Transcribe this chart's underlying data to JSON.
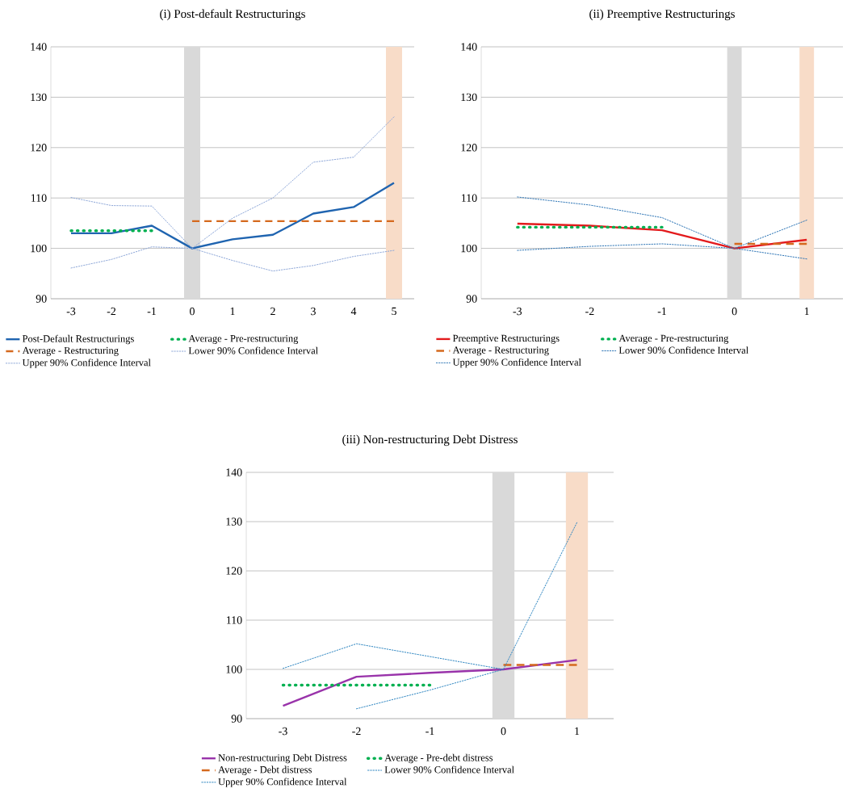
{
  "chart_data": [
    {
      "type": "line",
      "title": "(i) Post-default Restructurings",
      "x": [
        -3,
        -2,
        -1,
        0,
        1,
        2,
        3,
        4,
        5
      ],
      "xlim": [
        -3.5,
        5.5
      ],
      "xticks": [
        -3,
        -2,
        -1,
        0,
        1,
        2,
        3,
        4,
        5
      ],
      "ylim": [
        90,
        140
      ],
      "yticks": [
        90,
        100,
        110,
        120,
        130,
        140
      ],
      "grid": "y",
      "legend": "bottom",
      "marker": "none",
      "bands": [
        {
          "axis": "x",
          "from": -0.2,
          "to": 0.2,
          "color": "#d9d9d9"
        },
        {
          "axis": "x",
          "from": 4.8,
          "to": 5.2,
          "color": "#f8dcc8"
        }
      ],
      "series": [
        {
          "name": "Post-Default Restructurings",
          "color": "#1f64b0",
          "line_style": "solid",
          "values": [
            103.0,
            103.0,
            104.5,
            100,
            101.8,
            102.7,
            106.9,
            108.2,
            113.0
          ]
        },
        {
          "name": "Average - Pre-restructuring",
          "color": "#00b050",
          "line_style": "dotted",
          "values": [
            103.5,
            103.5,
            103.5,
            null,
            null,
            null,
            null,
            null,
            null
          ]
        },
        {
          "name": "Average - Restructuring",
          "color": "#d5691e",
          "line_style": "dashed",
          "values": [
            null,
            null,
            null,
            105.4,
            105.4,
            105.4,
            105.4,
            105.4,
            105.4
          ]
        },
        {
          "name": "Lower 90% Confidence Interval",
          "color": "#8fa8d8",
          "line_style": "dotted",
          "values": [
            96.1,
            97.8,
            100.3,
            100,
            97.6,
            95.5,
            96.6,
            98.4,
            99.6
          ]
        },
        {
          "name": "Upper 90% Confidence Interval",
          "color": "#8fa8d8",
          "line_style": "dotted",
          "values": [
            110.1,
            108.5,
            108.4,
            100,
            106.0,
            110.0,
            117.1,
            118.1,
            126.1
          ]
        }
      ]
    },
    {
      "type": "line",
      "title": "(ii) Preemptive Restructurings",
      "x": [
        -3,
        -2,
        -1,
        0,
        1
      ],
      "xlim": [
        -3.5,
        1.5
      ],
      "xticks": [
        -3,
        -2,
        -1,
        0,
        1
      ],
      "ylim": [
        90,
        140
      ],
      "yticks": [
        90,
        100,
        110,
        120,
        130,
        140
      ],
      "grid": "y",
      "legend": "bottom",
      "marker": "none",
      "bands": [
        {
          "axis": "x",
          "from": -0.1,
          "to": 0.1,
          "color": "#d9d9d9"
        },
        {
          "axis": "x",
          "from": 0.9,
          "to": 1.1,
          "color": "#f8dcc8"
        }
      ],
      "series": [
        {
          "name": "Preemptive Restructurings",
          "color": "#e31a1c",
          "line_style": "solid",
          "values": [
            104.9,
            104.5,
            103.6,
            100,
            101.7
          ]
        },
        {
          "name": "Average - Pre-restructuring",
          "color": "#00b050",
          "line_style": "dotted",
          "values": [
            104.2,
            104.2,
            104.2,
            null,
            null
          ]
        },
        {
          "name": "Average - Restructuring",
          "color": "#d5691e",
          "line_style": "dashed",
          "values": [
            null,
            null,
            null,
            100.9,
            100.9
          ]
        },
        {
          "name": "Lower 90% Confidence Interval",
          "color": "#2e75b6",
          "line_style": "dotted",
          "values": [
            99.6,
            100.4,
            100.9,
            100,
            97.9
          ]
        },
        {
          "name": "Upper 90% Confidence Interval",
          "color": "#2e75b6",
          "line_style": "dotted",
          "values": [
            110.2,
            108.6,
            106.1,
            100,
            105.6
          ]
        }
      ]
    },
    {
      "type": "line",
      "title": "(iii) Non-restructuring Debt Distress",
      "x": [
        -3,
        -2,
        -1,
        0,
        1
      ],
      "xlim": [
        -3.5,
        1.5
      ],
      "xticks": [
        -3,
        -2,
        -1,
        0,
        1
      ],
      "ylim": [
        90,
        140
      ],
      "yticks": [
        90,
        100,
        110,
        120,
        130,
        140
      ],
      "grid": "y",
      "legend": "bottom",
      "marker": "none",
      "bands": [
        {
          "axis": "x",
          "from": -0.15,
          "to": 0.15,
          "color": "#d9d9d9"
        },
        {
          "axis": "x",
          "from": 0.85,
          "to": 1.15,
          "color": "#f8dcc8"
        }
      ],
      "series": [
        {
          "name": "Non-restructuring Debt Distress",
          "color": "#9933aa",
          "line_style": "solid",
          "values": [
            92.6,
            98.5,
            99.3,
            100,
            101.9
          ]
        },
        {
          "name": "Average - Pre-debt distress",
          "color": "#00b050",
          "line_style": "dotted",
          "values": [
            96.8,
            96.8,
            96.8,
            null,
            null
          ]
        },
        {
          "name": "Average - Debt distress",
          "color": "#d5691e",
          "line_style": "dashed",
          "values": [
            null,
            null,
            null,
            100.9,
            100.9
          ]
        },
        {
          "name": "Lower 90% Confidence Interval",
          "color": "#2e86c1",
          "line_style": "dotted",
          "values": [
            null,
            92.0,
            95.8,
            100,
            null
          ]
        },
        {
          "name": "Upper 90% Confidence Interval",
          "color": "#2e86c1",
          "line_style": "dotted",
          "values": [
            100.2,
            105.2,
            102.6,
            100,
            129.8
          ]
        }
      ]
    }
  ]
}
